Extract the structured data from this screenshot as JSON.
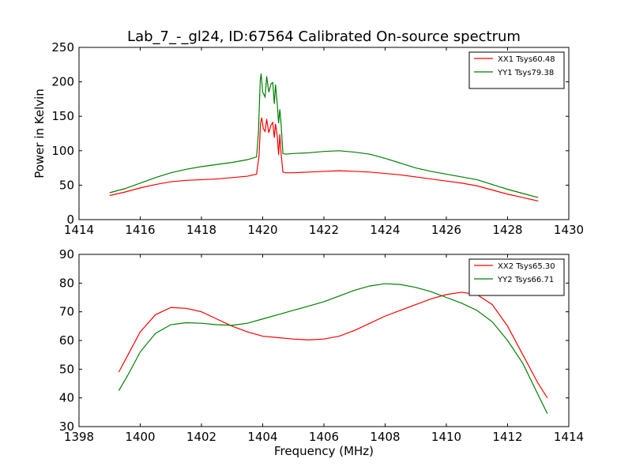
{
  "chart_data": [
    {
      "type": "line",
      "title": "Lab_7_-_gl24, ID:67564 Calibrated On-source spectrum",
      "xlabel": "",
      "ylabel": "Power in Kelvin",
      "xlim": [
        1414,
        1430
      ],
      "ylim": [
        0,
        250
      ],
      "xticks": [
        1414,
        1416,
        1418,
        1420,
        1422,
        1424,
        1426,
        1428,
        1430
      ],
      "yticks": [
        0,
        50,
        100,
        150,
        200,
        250
      ],
      "grid": false,
      "legend_position": "top-right",
      "series": [
        {
          "name": "XX1 Tsys60.48",
          "color": "#ff0000",
          "points": [
            [
              1415.0,
              35
            ],
            [
              1415.5,
              40
            ],
            [
              1416.0,
              46
            ],
            [
              1416.5,
              51
            ],
            [
              1417.0,
              55
            ],
            [
              1417.5,
              57
            ],
            [
              1418.0,
              58
            ],
            [
              1418.5,
              59
            ],
            [
              1419.0,
              61
            ],
            [
              1419.5,
              63
            ],
            [
              1419.8,
              66
            ],
            [
              1419.88,
              92
            ],
            [
              1419.93,
              140
            ],
            [
              1419.97,
              148
            ],
            [
              1420.02,
              132
            ],
            [
              1420.08,
              128
            ],
            [
              1420.13,
              146
            ],
            [
              1420.2,
              126
            ],
            [
              1420.27,
              137
            ],
            [
              1420.33,
              141
            ],
            [
              1420.38,
              119
            ],
            [
              1420.42,
              139
            ],
            [
              1420.48,
              120
            ],
            [
              1420.52,
              94
            ],
            [
              1420.56,
              124
            ],
            [
              1420.6,
              97
            ],
            [
              1420.66,
              69
            ],
            [
              1420.75,
              68
            ],
            [
              1421.0,
              68
            ],
            [
              1421.5,
              69
            ],
            [
              1422.0,
              70
            ],
            [
              1422.5,
              71
            ],
            [
              1423.0,
              70
            ],
            [
              1423.5,
              69
            ],
            [
              1424.0,
              67
            ],
            [
              1424.5,
              65
            ],
            [
              1425.0,
              62
            ],
            [
              1425.5,
              59
            ],
            [
              1426.0,
              56
            ],
            [
              1426.5,
              53
            ],
            [
              1427.0,
              49
            ],
            [
              1427.5,
              43
            ],
            [
              1428.0,
              37
            ],
            [
              1428.5,
              32
            ],
            [
              1429.0,
              27
            ]
          ]
        },
        {
          "name": "YY1 Tsys79.38",
          "color": "#008000",
          "points": [
            [
              1415.0,
              39
            ],
            [
              1415.5,
              45
            ],
            [
              1416.0,
              53
            ],
            [
              1416.5,
              61
            ],
            [
              1417.0,
              68
            ],
            [
              1417.5,
              73
            ],
            [
              1418.0,
              77
            ],
            [
              1418.5,
              80
            ],
            [
              1419.0,
              83
            ],
            [
              1419.5,
              87
            ],
            [
              1419.8,
              91
            ],
            [
              1419.86,
              125
            ],
            [
              1419.92,
              202
            ],
            [
              1419.95,
              212
            ],
            [
              1420.0,
              185
            ],
            [
              1420.08,
              178
            ],
            [
              1420.13,
              208
            ],
            [
              1420.2,
              185
            ],
            [
              1420.27,
              197
            ],
            [
              1420.33,
              199
            ],
            [
              1420.38,
              168
            ],
            [
              1420.42,
              196
            ],
            [
              1420.48,
              166
            ],
            [
              1420.52,
              140
            ],
            [
              1420.56,
              160
            ],
            [
              1420.6,
              140
            ],
            [
              1420.66,
              96
            ],
            [
              1420.75,
              95
            ],
            [
              1421.0,
              96
            ],
            [
              1421.5,
              97
            ],
            [
              1422.0,
              99
            ],
            [
              1422.5,
              100
            ],
            [
              1423.0,
              98
            ],
            [
              1423.5,
              95
            ],
            [
              1424.0,
              89
            ],
            [
              1424.5,
              82
            ],
            [
              1425.0,
              75
            ],
            [
              1425.5,
              70
            ],
            [
              1426.0,
              66
            ],
            [
              1426.5,
              62
            ],
            [
              1427.0,
              58
            ],
            [
              1427.5,
              51
            ],
            [
              1428.0,
              44
            ],
            [
              1428.5,
              38
            ],
            [
              1429.0,
              32
            ]
          ]
        }
      ]
    },
    {
      "type": "line",
      "title": "",
      "xlabel": "Frequency (MHz)",
      "ylabel": "",
      "xlim": [
        1398,
        1414
      ],
      "ylim": [
        30,
        90
      ],
      "xticks": [
        1398,
        1400,
        1402,
        1404,
        1406,
        1408,
        1410,
        1412,
        1414
      ],
      "yticks": [
        30,
        40,
        50,
        60,
        70,
        80,
        90
      ],
      "grid": false,
      "legend_position": "top-right",
      "series": [
        {
          "name": "XX2 Tsys65.30",
          "color": "#ff0000",
          "points": [
            [
              1399.3,
              49
            ],
            [
              1399.6,
              55
            ],
            [
              1400.0,
              63
            ],
            [
              1400.5,
              69
            ],
            [
              1401.0,
              71.5
            ],
            [
              1401.5,
              71.2
            ],
            [
              1402.0,
              70
            ],
            [
              1402.5,
              67.5
            ],
            [
              1403.0,
              65
            ],
            [
              1403.5,
              63
            ],
            [
              1404.0,
              61.5
            ],
            [
              1404.5,
              61
            ],
            [
              1405.0,
              60.5
            ],
            [
              1405.5,
              60.2
            ],
            [
              1406.0,
              60.5
            ],
            [
              1406.5,
              61.5
            ],
            [
              1407.0,
              63.5
            ],
            [
              1407.5,
              66
            ],
            [
              1408.0,
              68.5
            ],
            [
              1408.5,
              70.5
            ],
            [
              1409.0,
              72.5
            ],
            [
              1409.5,
              74.5
            ],
            [
              1410.0,
              76
            ],
            [
              1410.5,
              76.8
            ],
            [
              1411.0,
              76
            ],
            [
              1411.5,
              72.5
            ],
            [
              1412.0,
              65
            ],
            [
              1412.5,
              55
            ],
            [
              1413.0,
              45
            ],
            [
              1413.3,
              40
            ]
          ]
        },
        {
          "name": "YY2 Tsys66.71",
          "color": "#008000",
          "points": [
            [
              1399.3,
              42.5
            ],
            [
              1399.6,
              48
            ],
            [
              1400.0,
              56
            ],
            [
              1400.5,
              62.5
            ],
            [
              1401.0,
              65.5
            ],
            [
              1401.5,
              66.2
            ],
            [
              1402.0,
              66
            ],
            [
              1402.5,
              65.5
            ],
            [
              1403.0,
              65.3
            ],
            [
              1403.5,
              66
            ],
            [
              1404.0,
              67.5
            ],
            [
              1404.5,
              69
            ],
            [
              1405.0,
              70.5
            ],
            [
              1405.5,
              72
            ],
            [
              1406.0,
              73.5
            ],
            [
              1406.5,
              75.5
            ],
            [
              1407.0,
              77.5
            ],
            [
              1407.5,
              79
            ],
            [
              1408.0,
              79.8
            ],
            [
              1408.5,
              79.5
            ],
            [
              1409.0,
              78.5
            ],
            [
              1409.5,
              77
            ],
            [
              1410.0,
              75
            ],
            [
              1410.5,
              73
            ],
            [
              1411.0,
              70.5
            ],
            [
              1411.5,
              66.5
            ],
            [
              1412.0,
              60
            ],
            [
              1412.5,
              52
            ],
            [
              1413.0,
              41
            ],
            [
              1413.3,
              34.5
            ]
          ]
        }
      ]
    }
  ]
}
